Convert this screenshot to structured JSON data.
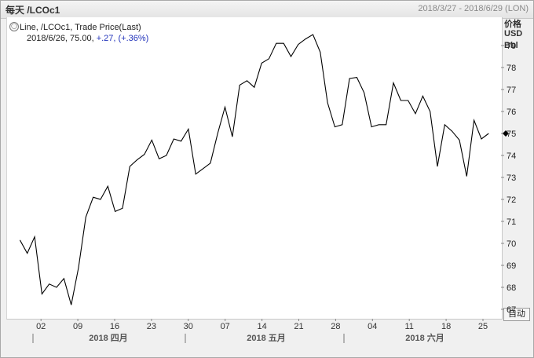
{
  "header": {
    "title": "每天 /LCOc1",
    "date_range": "2018/3/27 - 2018/6/29 (LON)"
  },
  "legend": {
    "icon": "chart-icon",
    "line1": "Line, /LCOc1, Trade Price(Last)",
    "line2_prefix": "2018/6/26, 75.00, ",
    "line2_change": "+.27, (+.36%)"
  },
  "axis": {
    "unit_lines": [
      "价格",
      "USD",
      "Bbl"
    ],
    "auto_button": "自动",
    "month_labels": [
      "2018 四月",
      "2018 五月",
      "2018 六月"
    ]
  },
  "chart_data": {
    "type": "line",
    "series": [
      {
        "values": [
          70.15,
          69.55,
          70.3,
          67.7,
          68.15,
          68.0,
          68.4,
          67.2,
          68.9,
          71.2,
          72.1,
          72.0,
          72.6,
          71.45,
          71.6,
          73.5,
          73.8,
          74.05,
          74.7,
          73.85,
          74.0,
          74.75,
          74.65,
          75.2,
          73.15,
          73.4,
          73.65,
          75.0,
          76.2,
          74.85,
          77.2,
          77.4,
          77.1,
          78.2,
          78.4,
          79.1,
          79.1,
          78.5,
          79.05,
          79.3,
          79.5,
          78.7,
          76.4,
          75.3,
          75.4,
          77.5,
          77.55,
          76.85,
          75.3,
          75.4,
          75.4,
          77.3,
          76.5,
          76.5,
          75.9,
          76.7,
          76.0,
          73.5,
          75.4,
          75.1,
          74.7,
          73.05,
          75.6,
          74.75,
          75.0
        ]
      }
    ],
    "ylim": [
      66.5,
      79.5
    ],
    "yticks": [
      67,
      68,
      69,
      70,
      71,
      72,
      73,
      74,
      75,
      76,
      77,
      78,
      79
    ],
    "last_value": 75,
    "x_tick_labels": [
      "02",
      "09",
      "16",
      "23",
      "30",
      "07",
      "14",
      "21",
      "28",
      "04",
      "11",
      "18",
      "25"
    ],
    "x_tick_days": [
      6,
      13,
      20,
      27,
      34,
      41,
      48,
      55,
      62,
      69,
      76,
      83,
      90
    ],
    "x_range": [
      0,
      95
    ],
    "grid": false,
    "line_color": "#000000"
  }
}
